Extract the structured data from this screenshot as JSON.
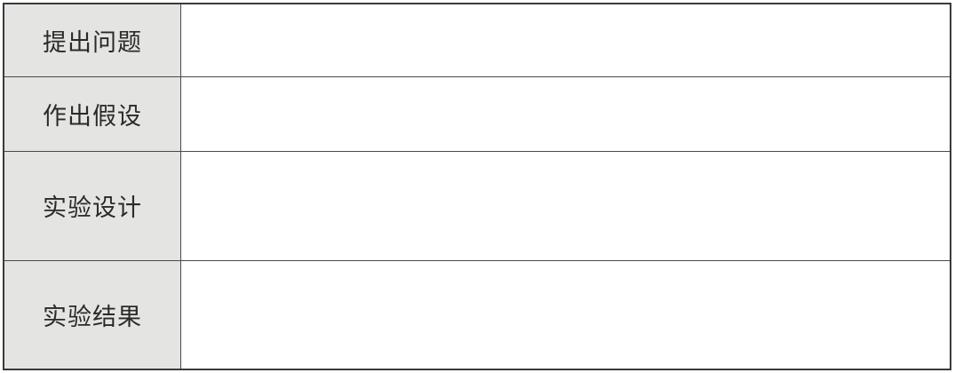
{
  "table": {
    "rows": [
      {
        "label": "提出问题",
        "value": ""
      },
      {
        "label": "作出假设",
        "value": ""
      },
      {
        "label": "实验设计",
        "value": ""
      },
      {
        "label": "实验结果",
        "value": ""
      }
    ]
  }
}
